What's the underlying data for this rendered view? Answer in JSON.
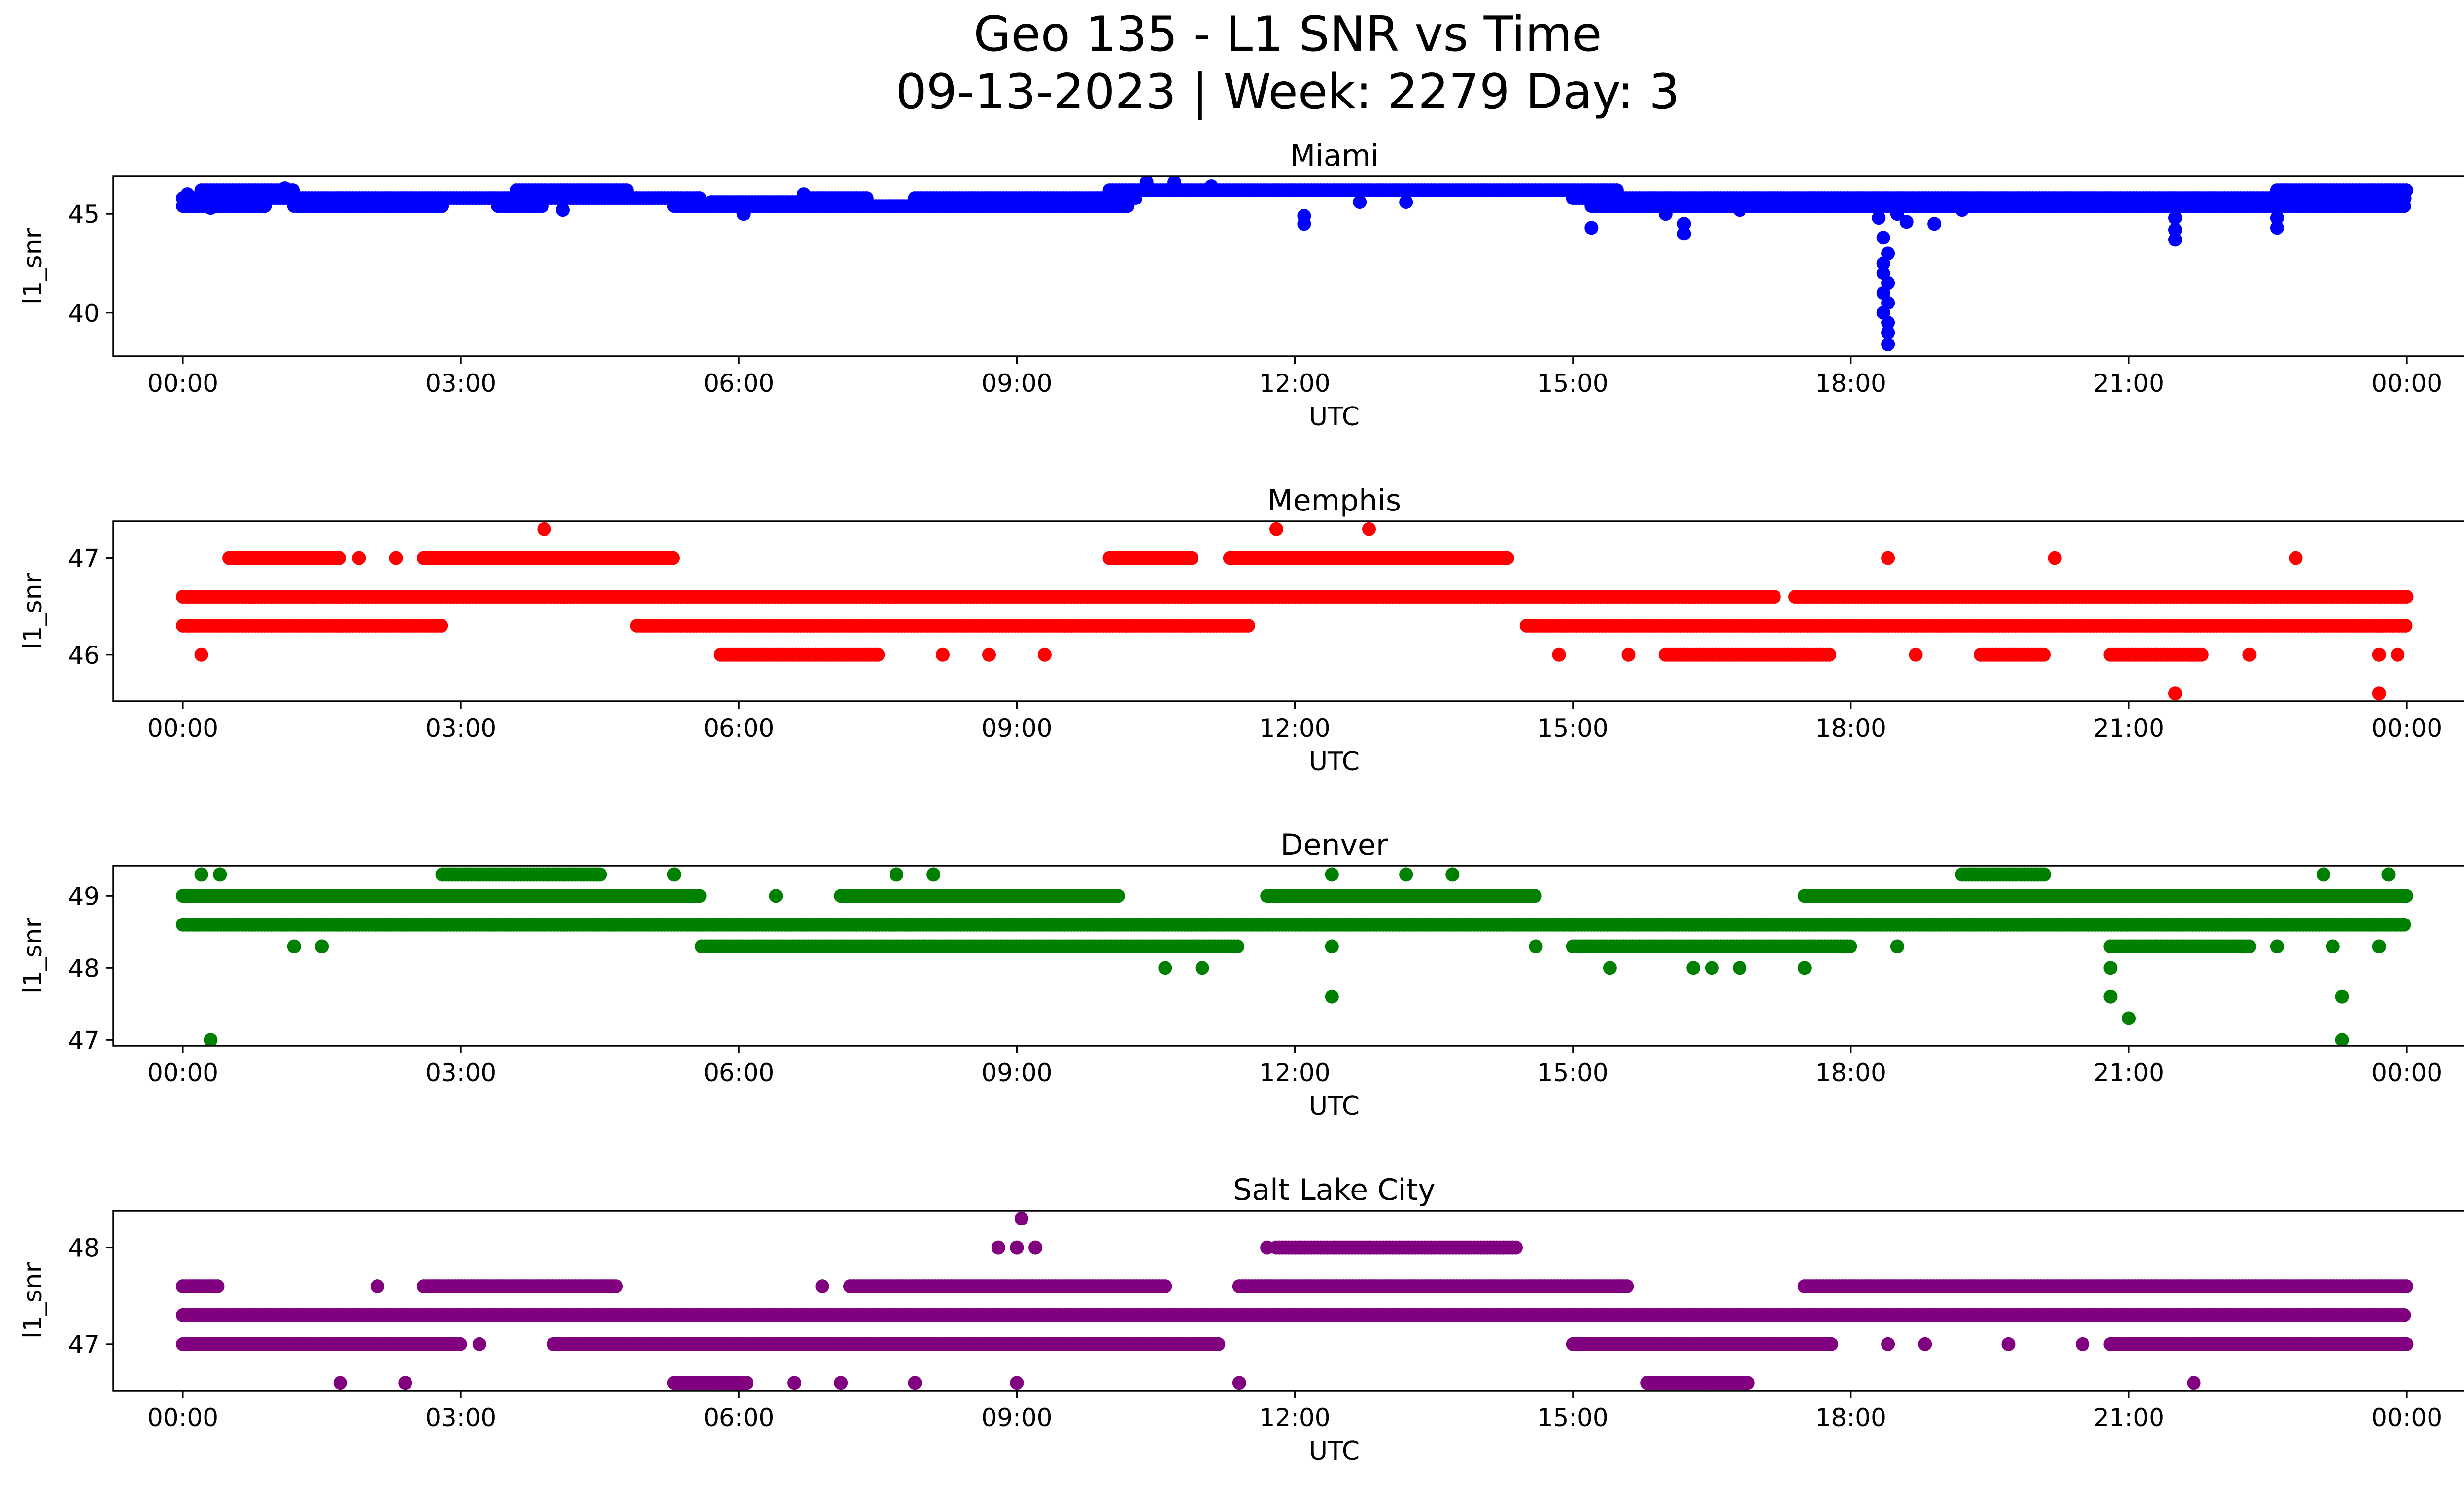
{
  "figure": {
    "title_line1": "Geo 135 - L1 SNR vs Time",
    "title_line2": "09-13-2023 | Week: 2279 Day: 3"
  },
  "chart_data": [
    {
      "type": "scatter",
      "title": "Miami",
      "xlabel": "UTC",
      "ylabel": "l1_snr",
      "color": "#0000ff",
      "xlim_hours": [
        -0.75,
        25.6
      ],
      "ylim": [
        37.8,
        46.9
      ],
      "xticks": [
        "00:00",
        "03:00",
        "06:00",
        "09:00",
        "12:00",
        "15:00",
        "18:00",
        "21:00",
        "00:00"
      ],
      "yticks": [
        40,
        45
      ],
      "bands": [
        {
          "y": 45.8,
          "segments": [
            [
              0.0,
              5.6
            ],
            [
              6.7,
              7.4
            ],
            [
              7.9,
              10.3
            ],
            [
              15.0,
              24.0
            ]
          ]
        },
        {
          "y": 45.4,
          "segments": [
            [
              0.0,
              0.9
            ],
            [
              1.2,
              2.8
            ],
            [
              3.4,
              3.9
            ],
            [
              5.3,
              10.2
            ],
            [
              15.2,
              24.0
            ]
          ]
        },
        {
          "y": 46.2,
          "segments": [
            [
              0.2,
              1.2
            ],
            [
              3.6,
              4.8
            ],
            [
              10.0,
              15.5
            ],
            [
              22.6,
              24.0
            ]
          ]
        },
        {
          "y": 45.6,
          "segments": [
            [
              5.7,
              6.9
            ],
            [
              18.0,
              18.9
            ]
          ]
        }
      ],
      "outliers": [
        [
          0.05,
          46.0
        ],
        [
          0.3,
          45.3
        ],
        [
          1.1,
          46.3
        ],
        [
          4.1,
          45.2
        ],
        [
          6.05,
          45.0
        ],
        [
          6.7,
          46.0
        ],
        [
          10.4,
          46.6
        ],
        [
          10.7,
          46.6
        ],
        [
          11.1,
          46.4
        ],
        [
          12.1,
          44.9
        ],
        [
          12.1,
          44.5
        ],
        [
          12.7,
          45.6
        ],
        [
          13.2,
          45.6
        ],
        [
          15.2,
          44.3
        ],
        [
          16.0,
          45.0
        ],
        [
          16.2,
          44.5
        ],
        [
          16.2,
          44.0
        ],
        [
          16.8,
          45.2
        ],
        [
          18.3,
          44.8
        ],
        [
          18.35,
          43.8
        ],
        [
          18.4,
          43.0
        ],
        [
          18.35,
          42.5
        ],
        [
          18.35,
          42.0
        ],
        [
          18.4,
          41.5
        ],
        [
          18.35,
          41.0
        ],
        [
          18.4,
          40.5
        ],
        [
          18.35,
          40.0
        ],
        [
          18.4,
          39.5
        ],
        [
          18.4,
          39.0
        ],
        [
          18.4,
          38.4
        ],
        [
          18.5,
          45.0
        ],
        [
          18.6,
          44.6
        ],
        [
          18.9,
          44.5
        ],
        [
          19.2,
          45.2
        ],
        [
          21.5,
          44.2
        ],
        [
          21.5,
          43.7
        ],
        [
          21.5,
          44.8
        ],
        [
          22.6,
          44.3
        ],
        [
          22.6,
          44.8
        ]
      ]
    },
    {
      "type": "scatter",
      "title": "Memphis",
      "xlabel": "UTC",
      "ylabel": "l1_snr",
      "color": "#ff0000",
      "xlim_hours": [
        -0.75,
        25.6
      ],
      "ylim": [
        45.52,
        47.38
      ],
      "xticks": [
        "00:00",
        "03:00",
        "06:00",
        "09:00",
        "12:00",
        "15:00",
        "18:00",
        "21:00",
        "00:00"
      ],
      "yticks": [
        46,
        47
      ],
      "bands": [
        {
          "y": 46.6,
          "segments": [
            [
              0.0,
              17.2
            ],
            [
              17.4,
              24.0
            ]
          ]
        },
        {
          "y": 46.3,
          "segments": [
            [
              0.0,
              2.8
            ],
            [
              4.9,
              11.5
            ],
            [
              14.5,
              24.0
            ]
          ]
        },
        {
          "y": 47.0,
          "segments": [
            [
              0.5,
              1.7
            ],
            [
              2.6,
              5.3
            ],
            [
              10.0,
              10.9
            ],
            [
              11.3,
              14.3
            ]
          ]
        },
        {
          "y": 46.0,
          "segments": [
            [
              5.8,
              7.5
            ],
            [
              16.0,
              17.8
            ],
            [
              19.4,
              20.1
            ],
            [
              20.8,
              21.8
            ]
          ]
        }
      ],
      "outliers": [
        [
          0.2,
          46.0
        ],
        [
          1.9,
          47.0
        ],
        [
          2.3,
          47.0
        ],
        [
          3.9,
          47.3
        ],
        [
          8.2,
          46.0
        ],
        [
          8.7,
          46.0
        ],
        [
          9.3,
          46.0
        ],
        [
          11.8,
          47.3
        ],
        [
          12.8,
          47.3
        ],
        [
          14.85,
          46.0
        ],
        [
          15.6,
          46.0
        ],
        [
          18.4,
          47.0
        ],
        [
          18.7,
          46.0
        ],
        [
          20.2,
          47.0
        ],
        [
          21.5,
          45.6
        ],
        [
          22.3,
          46.0
        ],
        [
          22.8,
          47.0
        ],
        [
          23.7,
          45.6
        ],
        [
          23.7,
          46.0
        ],
        [
          23.9,
          46.0
        ]
      ]
    },
    {
      "type": "scatter",
      "title": "Denver",
      "xlabel": "UTC",
      "ylabel": "l1_snr",
      "color": "#008000",
      "xlim_hours": [
        -0.75,
        25.6
      ],
      "ylim": [
        46.92,
        49.42
      ],
      "xticks": [
        "00:00",
        "03:00",
        "06:00",
        "09:00",
        "12:00",
        "15:00",
        "18:00",
        "21:00",
        "00:00"
      ],
      "yticks": [
        47,
        48,
        49
      ],
      "bands": [
        {
          "y": 49.0,
          "segments": [
            [
              0.0,
              5.6
            ],
            [
              7.1,
              10.1
            ],
            [
              11.7,
              14.6
            ],
            [
              17.5,
              24.0
            ]
          ]
        },
        {
          "y": 48.6,
          "segments": [
            [
              0.0,
              24.0
            ]
          ]
        },
        {
          "y": 48.3,
          "segments": [
            [
              5.6,
              11.4
            ],
            [
              15.0,
              18.0
            ],
            [
              20.8,
              22.3
            ]
          ]
        },
        {
          "y": 49.3,
          "segments": [
            [
              2.8,
              4.5
            ],
            [
              19.2,
              20.1
            ]
          ]
        }
      ],
      "outliers": [
        [
          0.2,
          49.3
        ],
        [
          0.3,
          47.0
        ],
        [
          0.4,
          49.3
        ],
        [
          1.2,
          48.3
        ],
        [
          1.5,
          48.3
        ],
        [
          5.3,
          49.3
        ],
        [
          6.4,
          49.0
        ],
        [
          7.7,
          49.3
        ],
        [
          8.1,
          49.3
        ],
        [
          10.6,
          48.0
        ],
        [
          11.0,
          48.0
        ],
        [
          12.4,
          49.3
        ],
        [
          12.4,
          48.3
        ],
        [
          12.4,
          47.6
        ],
        [
          13.2,
          49.3
        ],
        [
          13.7,
          49.3
        ],
        [
          14.6,
          48.3
        ],
        [
          15.4,
          48.0
        ],
        [
          16.3,
          48.0
        ],
        [
          16.5,
          48.0
        ],
        [
          16.8,
          48.0
        ],
        [
          17.5,
          48.0
        ],
        [
          18.5,
          48.3
        ],
        [
          20.8,
          48.0
        ],
        [
          20.8,
          47.6
        ],
        [
          21.0,
          47.3
        ],
        [
          22.6,
          48.3
        ],
        [
          23.1,
          49.3
        ],
        [
          23.2,
          48.3
        ],
        [
          23.3,
          47.6
        ],
        [
          23.3,
          47.0
        ],
        [
          23.7,
          48.3
        ],
        [
          23.8,
          49.3
        ]
      ]
    },
    {
      "type": "scatter",
      "title": "Salt Lake City",
      "xlabel": "UTC",
      "ylabel": "l1_snr",
      "color": "#800080",
      "xlim_hours": [
        -0.75,
        25.6
      ],
      "ylim": [
        46.52,
        48.38
      ],
      "xticks": [
        "00:00",
        "03:00",
        "06:00",
        "09:00",
        "12:00",
        "15:00",
        "18:00",
        "21:00",
        "00:00"
      ],
      "yticks": [
        47,
        48
      ],
      "bands": [
        {
          "y": 47.3,
          "segments": [
            [
              0.0,
              24.0
            ]
          ]
        },
        {
          "y": 47.0,
          "segments": [
            [
              0.0,
              3.0
            ],
            [
              4.0,
              11.2
            ],
            [
              15.0,
              17.8
            ],
            [
              20.8,
              24.0
            ]
          ]
        },
        {
          "y": 47.6,
          "segments": [
            [
              0.0,
              0.4
            ],
            [
              2.6,
              4.7
            ],
            [
              7.2,
              10.6
            ],
            [
              11.4,
              15.6
            ],
            [
              17.5,
              24.0
            ]
          ]
        },
        {
          "y": 48.0,
          "segments": [
            [
              11.8,
              14.4
            ]
          ]
        },
        {
          "y": 46.6,
          "segments": [
            [
              5.3,
              6.1
            ],
            [
              15.8,
              16.9
            ]
          ]
        }
      ],
      "outliers": [
        [
          1.7,
          46.6
        ],
        [
          2.1,
          47.6
        ],
        [
          2.4,
          46.6
        ],
        [
          3.2,
          47.0
        ],
        [
          6.6,
          46.6
        ],
        [
          6.9,
          47.6
        ],
        [
          7.1,
          46.6
        ],
        [
          7.9,
          46.6
        ],
        [
          8.8,
          48.0
        ],
        [
          9.0,
          48.0
        ],
        [
          9.05,
          48.3
        ],
        [
          9.2,
          48.0
        ],
        [
          9.0,
          46.6
        ],
        [
          11.4,
          46.6
        ],
        [
          11.7,
          48.0
        ],
        [
          18.4,
          47.0
        ],
        [
          18.8,
          47.0
        ],
        [
          19.7,
          47.0
        ],
        [
          20.5,
          47.0
        ],
        [
          21.7,
          46.6
        ]
      ]
    }
  ]
}
